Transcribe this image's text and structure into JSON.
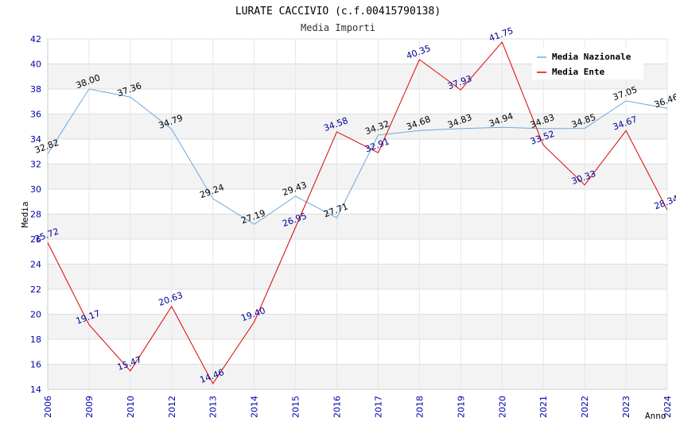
{
  "chart_data": {
    "type": "line",
    "title": "LURATE CACCIVIO (c.f.00415790138)",
    "subtitle": "Media Importi",
    "xlabel": "Anno",
    "ylabel": "Media",
    "categories": [
      "2006",
      "2009",
      "2010",
      "2012",
      "2013",
      "2014",
      "2015",
      "2016",
      "2017",
      "2018",
      "2019",
      "2020",
      "2021",
      "2022",
      "2023",
      "2024"
    ],
    "ylim": [
      14,
      42
    ],
    "yticks": [
      14,
      16,
      18,
      20,
      22,
      24,
      26,
      28,
      30,
      32,
      34,
      36,
      38,
      40,
      42
    ],
    "grid": true,
    "legend_position": "top-right",
    "series": [
      {
        "name": "Media Nazionale",
        "color": "#6fa8dc",
        "label_color": "#000000",
        "values": [
          32.82,
          38.0,
          37.36,
          34.79,
          29.24,
          27.19,
          29.43,
          27.71,
          34.32,
          34.68,
          34.83,
          34.94,
          34.83,
          34.85,
          37.05,
          36.46
        ],
        "labels": [
          "32.82",
          "38.00",
          "37.36",
          "34.79",
          "29.24",
          "27.19",
          "29.43",
          "27.71",
          "34.32",
          "34.68",
          "34.83",
          "34.94",
          "34.83",
          "34.85",
          "37.05",
          "36.46"
        ]
      },
      {
        "name": "Media Ente",
        "color": "#dd0000",
        "label_color": "#000099",
        "values": [
          25.72,
          19.17,
          15.47,
          20.63,
          14.46,
          19.4,
          26.95,
          34.58,
          32.91,
          40.35,
          37.93,
          41.75,
          33.52,
          30.33,
          34.67,
          28.34
        ],
        "labels": [
          "25.72",
          "19.17",
          "15.47",
          "20.63",
          "14.46",
          "19.40",
          "26.95",
          "34.58",
          "32.91",
          "40.35",
          "37.93",
          "41.75",
          "33.52",
          "30.33",
          "34.67",
          "28.34"
        ]
      }
    ]
  }
}
